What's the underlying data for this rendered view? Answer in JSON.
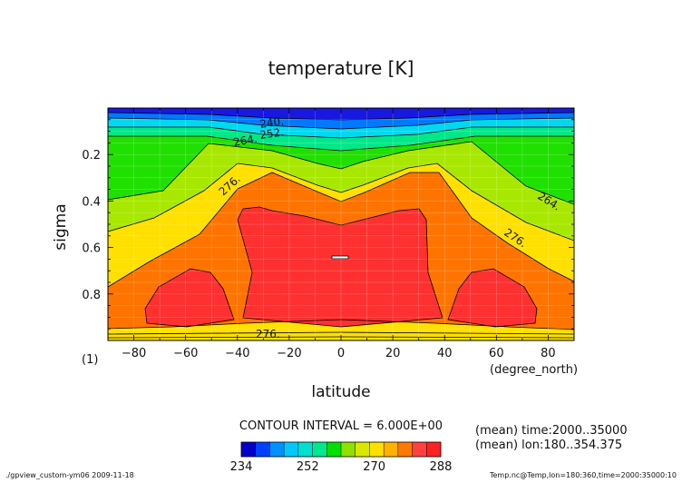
{
  "chart_data": {
    "type": "heatmap",
    "subtype": "filled-contour",
    "title": "temperature [K]",
    "xlabel": "latitude",
    "x_unit": "(degree_north)",
    "ylabel": "sigma",
    "y_unit": "(1)",
    "xlim": [
      -90,
      90
    ],
    "ylim": [
      0,
      1
    ],
    "y_inverted": true,
    "grid": true,
    "x_ticks": [
      -80,
      -60,
      -40,
      -20,
      0,
      20,
      40,
      60,
      80
    ],
    "x_tick_labels": [
      "−80",
      "−60",
      "−40",
      "−20",
      "0",
      "20",
      "40",
      "60",
      "80"
    ],
    "y_ticks": [
      0.2,
      0.4,
      0.6,
      0.8
    ],
    "y_tick_labels": [
      "0.2",
      "0.4",
      "0.6",
      "0.8"
    ],
    "contour_interval": "CONTOUR INTERVAL = 6.000E+00",
    "contour_labels": [
      "240",
      "252",
      "264",
      "276",
      "264",
      "276",
      "276"
    ],
    "contour_label_texts": [
      "240.",
      "252.",
      "264.",
      "276.",
      "264.",
      "276.",
      "276."
    ],
    "levels": [
      234,
      240,
      246,
      252,
      258,
      264,
      270,
      276,
      282,
      288
    ],
    "colorbar": {
      "tick_labels": [
        "234",
        "252",
        "270",
        "288"
      ],
      "colors": [
        "#0000c8",
        "#0040ff",
        "#0090ff",
        "#00c8ff",
        "#00e0d0",
        "#00e890",
        "#00e000",
        "#90e000",
        "#d8e800",
        "#ffe000",
        "#ffb000",
        "#ff7800",
        "#ff4040",
        "#ff2020"
      ]
    },
    "regions": {
      "top_band": "#1818e0",
      "band_a": "#0078ff",
      "band_b": "#00d8f0",
      "band_c": "#00e888",
      "band_d": "#20e000",
      "band_e": "#a8e800",
      "band_f": "#ffe000",
      "band_g": "#ff7400",
      "core": "#ff3030",
      "inner": "#ff3030"
    },
    "annotations": [
      "(mean) time:2000..35000",
      "(mean) lon:180..354.375"
    ]
  },
  "footer": {
    "left": "./gpview_custom-ym06   2009-11-18",
    "right": "Temp.nc@Temp,lon=180:360,time=2000:35000:10"
  }
}
